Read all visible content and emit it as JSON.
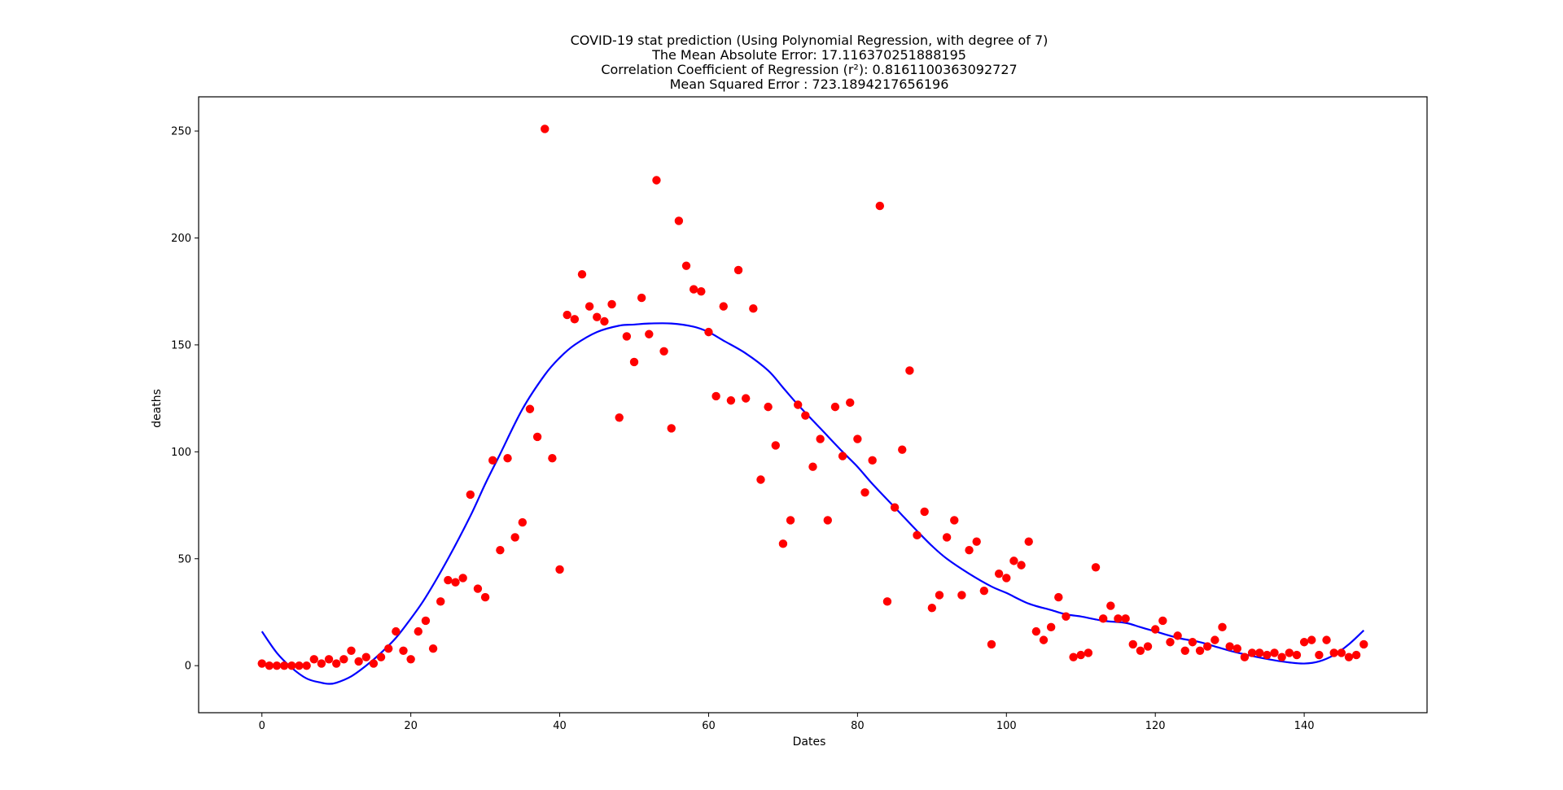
{
  "chart_data": {
    "type": "scatter",
    "title_lines": [
      "COVID-19 stat prediction (Using Polynomial Regression, with degree of 7)",
      "The Mean Absolute Error: 17.116370251888195",
      "Correlation Coefficient of Regression (r²): 0.8161100363092727",
      "Mean Squared Error : 723.1894217656196"
    ],
    "xlabel": "Dates",
    "ylabel": "deaths",
    "xlim": [
      -8.5,
      156.5
    ],
    "ylim": [
      -22,
      266
    ],
    "x_ticks": [
      0,
      20,
      40,
      60,
      80,
      100,
      120,
      140
    ],
    "y_ticks": [
      0,
      50,
      100,
      150,
      200,
      250
    ],
    "grid": false,
    "legend": "none",
    "colors": {
      "points": "#ff0000",
      "fit_line": "#0000ff",
      "axes": "#000000"
    },
    "series": [
      {
        "kind": "points",
        "x": [
          0,
          1,
          2,
          3,
          4,
          5,
          6,
          7,
          8,
          9,
          10,
          11,
          12,
          13,
          14,
          15,
          16,
          17,
          18,
          19,
          20,
          21,
          22,
          23,
          24,
          25,
          26,
          27,
          28,
          29,
          30,
          31,
          32,
          33,
          34,
          35,
          36,
          37,
          38,
          39,
          40,
          41,
          42,
          43,
          44,
          45,
          46,
          47,
          48,
          49,
          50,
          51,
          52,
          53,
          54,
          55,
          56,
          57,
          58,
          59,
          60,
          61,
          62,
          63,
          64,
          65,
          66,
          67,
          68,
          69,
          70,
          71,
          72,
          73,
          74,
          75,
          76,
          77,
          78,
          79,
          80,
          81,
          82,
          83,
          84,
          85,
          86,
          87,
          88,
          89,
          90,
          91,
          92,
          93,
          94,
          95,
          96,
          97,
          98,
          99,
          100,
          101,
          102,
          103,
          104,
          105,
          106,
          107,
          108,
          109,
          110,
          111,
          112,
          113,
          114,
          115,
          116,
          117,
          118,
          119,
          120,
          121,
          122,
          123,
          124,
          125,
          126,
          127,
          128,
          129,
          130,
          131,
          132,
          133,
          134,
          135,
          136,
          137,
          138,
          139,
          140,
          141,
          142,
          143,
          144,
          145,
          146,
          147,
          148
        ],
        "y": [
          1,
          0,
          0,
          0,
          0,
          0,
          0,
          3,
          1,
          3,
          1,
          3,
          7,
          2,
          4,
          1,
          4,
          8,
          16,
          7,
          3,
          16,
          21,
          8,
          30,
          40,
          39,
          41,
          80,
          36,
          32,
          96,
          54,
          97,
          60,
          67,
          120,
          107,
          251,
          97,
          45,
          164,
          162,
          183,
          168,
          163,
          161,
          169,
          116,
          154,
          142,
          172,
          155,
          227,
          147,
          111,
          208,
          187,
          176,
          175,
          156,
          126,
          168,
          124,
          185,
          125,
          167,
          87,
          121,
          103,
          57,
          68,
          122,
          117,
          93,
          106,
          68,
          121,
          98,
          123,
          106,
          81,
          96,
          215,
          30,
          74,
          101,
          138,
          61,
          72,
          27,
          33,
          60,
          68,
          33,
          54,
          58,
          35,
          10,
          43,
          41,
          49,
          47,
          58,
          16,
          12,
          18,
          32,
          23,
          4,
          5,
          6,
          46,
          22,
          28,
          22,
          22,
          10,
          7,
          9,
          17,
          21,
          11,
          14,
          7,
          11,
          7,
          9,
          12,
          18,
          9,
          8,
          4,
          6,
          6,
          5,
          6,
          4,
          6,
          5,
          11,
          12,
          5,
          12,
          6,
          6,
          4,
          5,
          10
        ]
      },
      {
        "kind": "line",
        "x": [
          0,
          2,
          4,
          6,
          8,
          9,
          10,
          12,
          14,
          16,
          18,
          20,
          22,
          25,
          28,
          30,
          32,
          35,
          38,
          40,
          42,
          45,
          48,
          50,
          52,
          55,
          58,
          60,
          62,
          65,
          68,
          70,
          72,
          75,
          78,
          80,
          82,
          85,
          88,
          90,
          92,
          95,
          98,
          100,
          103,
          106,
          108,
          110,
          113,
          116,
          118,
          120,
          123,
          126,
          128,
          130,
          133,
          136,
          138,
          140,
          142,
          144,
          146,
          148
        ],
        "y": [
          16,
          6,
          -1,
          -6,
          -8,
          -8.5,
          -8,
          -5,
          0,
          6,
          13,
          22,
          32,
          50,
          70,
          85,
          99,
          120,
          136,
          144,
          150,
          156,
          159,
          159.5,
          160,
          160,
          158.5,
          156,
          152,
          146,
          138,
          130,
          122,
          111,
          100,
          93,
          85,
          74,
          63,
          56,
          50,
          43,
          37,
          34,
          29,
          26,
          24,
          23,
          21,
          20,
          18,
          16,
          13,
          11,
          9,
          7,
          4.5,
          2.5,
          1.5,
          1,
          2,
          5,
          10,
          16.5
        ]
      }
    ]
  }
}
